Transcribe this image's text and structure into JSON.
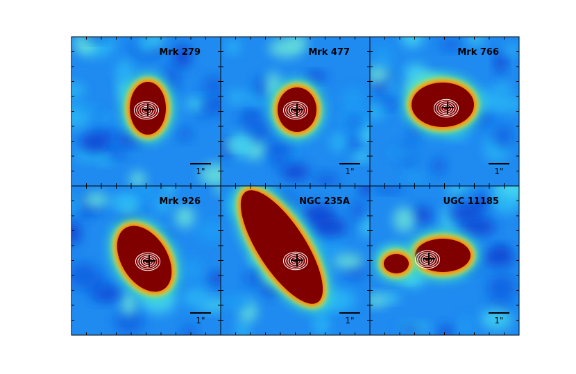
{
  "panels": [
    {
      "label": "Mrk 279",
      "scale_label": "1\""
    },
    {
      "label": "Mrk 477",
      "scale_label": "1\""
    },
    {
      "label": "Mrk 766",
      "scale_label": "1\""
    },
    {
      "label": "Mrk 926",
      "scale_label": "1\""
    },
    {
      "label": "NGC 235A",
      "scale_label": "1\""
    },
    {
      "label": "UGC 11185",
      "scale_label": "1\""
    }
  ]
}
